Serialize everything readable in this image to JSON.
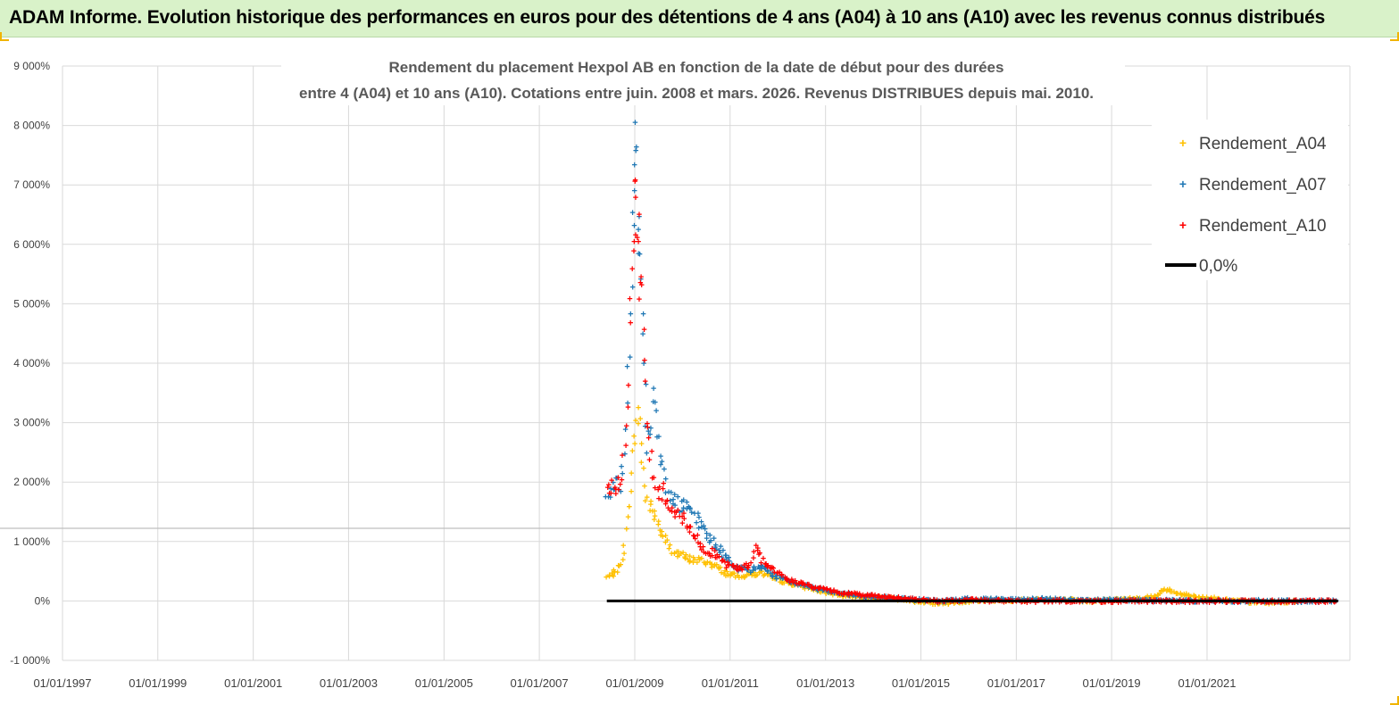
{
  "header": {
    "title": "ADAM Informe. Evolution historique des performances en euros pour des détentions de 4 ans (A04) à 10 ans (A10) avec les revenus connus distribués"
  },
  "colors": {
    "a04": "#ffc000",
    "a07": "#1f77b4",
    "a10": "#ff0000",
    "zero": "#000000",
    "grid": "#d9d9d9",
    "header_bg": "#d9f2c9"
  },
  "chart_data": {
    "type": "scatter",
    "title_line1": "Rendement du placement Hexpol AB en fonction de la date de début pour des durées",
    "title_line2": "entre 4 (A04) et 10 ans (A10).  Cotations entre juin. 2008 et mars. 2026. Revenus DISTRIBUES depuis mai. 2010.",
    "xlabel": "",
    "ylabel": "",
    "xlim": [
      "1997-01-01",
      "2023-12-31"
    ],
    "ylim": [
      -1000,
      9000
    ],
    "x_ticks": [
      "01/01/1997",
      "01/01/1999",
      "01/01/2001",
      "01/01/2003",
      "01/01/2005",
      "01/01/2007",
      "01/01/2009",
      "01/01/2011",
      "01/01/2013",
      "01/01/2015",
      "01/01/2017",
      "01/01/2019",
      "01/01/2021"
    ],
    "y_ticks": [
      {
        "value": -1000,
        "label": "-1 000%"
      },
      {
        "value": 0,
        "label": "0%"
      },
      {
        "value": 1000,
        "label": "1 000%"
      },
      {
        "value": 2000,
        "label": "2 000%"
      },
      {
        "value": 3000,
        "label": "3 000%"
      },
      {
        "value": 4000,
        "label": "4 000%"
      },
      {
        "value": 5000,
        "label": "5 000%"
      },
      {
        "value": 6000,
        "label": "6 000%"
      },
      {
        "value": 7000,
        "label": "7 000%"
      },
      {
        "value": 8000,
        "label": "8 000%"
      },
      {
        "value": 9000,
        "label": "9 000%"
      }
    ],
    "legend_position": "top-right",
    "series": [
      {
        "name": "Rendement_A04",
        "key": "a04",
        "points": [
          [
            "2008-06-01",
            400
          ],
          [
            "2008-08-01",
            480
          ],
          [
            "2008-09-15",
            600
          ],
          [
            "2008-10-15",
            1000
          ],
          [
            "2008-11-15",
            1500
          ],
          [
            "2008-12-10",
            2200
          ],
          [
            "2008-12-25",
            2600
          ],
          [
            "2009-01-10",
            3000
          ],
          [
            "2009-02-01",
            3200
          ],
          [
            "2009-02-20",
            2700
          ],
          [
            "2009-03-10",
            2200
          ],
          [
            "2009-04-01",
            1700
          ],
          [
            "2009-05-01",
            1600
          ],
          [
            "2009-06-15",
            1400
          ],
          [
            "2009-08-01",
            1100
          ],
          [
            "2009-10-01",
            900
          ],
          [
            "2009-12-01",
            780
          ],
          [
            "2010-03-01",
            700
          ],
          [
            "2010-06-01",
            680
          ],
          [
            "2010-09-01",
            600
          ],
          [
            "2010-12-01",
            470
          ],
          [
            "2011-03-01",
            420
          ],
          [
            "2011-06-01",
            450
          ],
          [
            "2011-09-01",
            470
          ],
          [
            "2011-12-01",
            380
          ],
          [
            "2012-04-01",
            300
          ],
          [
            "2012-09-01",
            220
          ],
          [
            "2013-01-01",
            140
          ],
          [
            "2013-06-01",
            90
          ],
          [
            "2014-01-01",
            60
          ],
          [
            "2014-06-01",
            40
          ],
          [
            "2015-01-01",
            -10
          ],
          [
            "2015-06-01",
            -40
          ],
          [
            "2016-01-01",
            0
          ],
          [
            "2016-06-01",
            20
          ],
          [
            "2017-01-01",
            10
          ],
          [
            "2017-06-01",
            30
          ],
          [
            "2018-01-01",
            20
          ],
          [
            "2018-06-01",
            0
          ],
          [
            "2019-01-01",
            20
          ],
          [
            "2019-06-01",
            40
          ],
          [
            "2019-12-01",
            80
          ],
          [
            "2020-02-01",
            200
          ],
          [
            "2020-06-01",
            120
          ],
          [
            "2020-12-01",
            60
          ],
          [
            "2021-06-01",
            20
          ],
          [
            "2021-12-01",
            -20
          ],
          [
            "2022-06-01",
            -20
          ],
          [
            "2022-12-01",
            0
          ]
        ]
      },
      {
        "name": "Rendement_A07",
        "key": "a07",
        "points": [
          [
            "2008-06-01",
            1700
          ],
          [
            "2008-07-15",
            1850
          ],
          [
            "2008-08-15",
            1900
          ],
          [
            "2008-09-15",
            2000
          ],
          [
            "2008-10-15",
            2500
          ],
          [
            "2008-11-01",
            3500
          ],
          [
            "2008-11-20",
            4500
          ],
          [
            "2008-12-10",
            5500
          ],
          [
            "2008-12-25",
            6500
          ],
          [
            "2009-01-05",
            7400
          ],
          [
            "2009-01-10",
            7700
          ],
          [
            "2009-01-25",
            6800
          ],
          [
            "2009-02-05",
            6000
          ],
          [
            "2009-02-20",
            5500
          ],
          [
            "2009-03-05",
            4500
          ],
          [
            "2009-03-20",
            3500
          ],
          [
            "2009-04-10",
            2700
          ],
          [
            "2009-05-01",
            3000
          ],
          [
            "2009-05-20",
            3400
          ],
          [
            "2009-06-05",
            3600
          ],
          [
            "2009-06-25",
            2800
          ],
          [
            "2009-07-20",
            2400
          ],
          [
            "2009-08-20",
            2000
          ],
          [
            "2009-10-01",
            1750
          ],
          [
            "2009-12-01",
            1650
          ],
          [
            "2010-03-01",
            1500
          ],
          [
            "2010-06-01",
            1250
          ],
          [
            "2010-09-01",
            950
          ],
          [
            "2010-12-01",
            750
          ],
          [
            "2011-03-01",
            550
          ],
          [
            "2011-06-01",
            500
          ],
          [
            "2011-09-01",
            600
          ],
          [
            "2011-12-01",
            420
          ],
          [
            "2012-04-01",
            330
          ],
          [
            "2012-09-01",
            240
          ],
          [
            "2013-01-01",
            180
          ],
          [
            "2013-06-01",
            120
          ],
          [
            "2014-01-01",
            70
          ],
          [
            "2014-06-01",
            50
          ],
          [
            "2015-01-01",
            20
          ],
          [
            "2015-06-01",
            0
          ],
          [
            "2016-01-01",
            30
          ],
          [
            "2016-06-01",
            40
          ],
          [
            "2017-01-01",
            20
          ],
          [
            "2017-06-01",
            30
          ],
          [
            "2018-01-01",
            30
          ],
          [
            "2018-06-01",
            10
          ],
          [
            "2019-01-01",
            20
          ],
          [
            "2019-06-01",
            20
          ],
          [
            "2020-01-01",
            10
          ],
          [
            "2020-06-01",
            10
          ],
          [
            "2021-01-01",
            0
          ],
          [
            "2021-06-01",
            0
          ],
          [
            "2022-01-01",
            0
          ],
          [
            "2022-06-01",
            0
          ],
          [
            "2023-01-01",
            0
          ],
          [
            "2023-06-01",
            0
          ],
          [
            "2023-10-01",
            0
          ]
        ]
      },
      {
        "name": "Rendement_A10",
        "key": "a10",
        "points": [
          [
            "2008-06-01",
            1800
          ],
          [
            "2008-07-15",
            1900
          ],
          [
            "2008-08-15",
            1950
          ],
          [
            "2008-09-15",
            2000
          ],
          [
            "2008-10-15",
            2600
          ],
          [
            "2008-11-01",
            3500
          ],
          [
            "2008-11-20",
            4300
          ],
          [
            "2008-12-10",
            5200
          ],
          [
            "2008-12-25",
            6000
          ],
          [
            "2009-01-05",
            6500
          ],
          [
            "2009-01-10",
            6800
          ],
          [
            "2009-01-25",
            6400
          ],
          [
            "2009-02-05",
            5800
          ],
          [
            "2009-02-20",
            5300
          ],
          [
            "2009-03-05",
            4600
          ],
          [
            "2009-03-20",
            3600
          ],
          [
            "2009-04-10",
            2800
          ],
          [
            "2009-05-01",
            2500
          ],
          [
            "2009-06-01",
            2000
          ],
          [
            "2009-07-01",
            1900
          ],
          [
            "2009-08-01",
            1850
          ],
          [
            "2009-10-01",
            1600
          ],
          [
            "2009-12-01",
            1500
          ],
          [
            "2010-03-01",
            1200
          ],
          [
            "2010-06-01",
            900
          ],
          [
            "2010-09-01",
            800
          ],
          [
            "2010-12-01",
            620
          ],
          [
            "2011-03-01",
            540
          ],
          [
            "2011-06-01",
            600
          ],
          [
            "2011-07-15",
            950
          ],
          [
            "2011-09-01",
            700
          ],
          [
            "2011-12-01",
            520
          ],
          [
            "2012-04-01",
            350
          ],
          [
            "2012-09-01",
            260
          ],
          [
            "2013-01-01",
            190
          ],
          [
            "2013-06-01",
            130
          ],
          [
            "2014-01-01",
            90
          ],
          [
            "2014-06-01",
            60
          ],
          [
            "2015-01-01",
            20
          ],
          [
            "2015-06-01",
            0
          ],
          [
            "2016-01-01",
            20
          ],
          [
            "2016-06-01",
            10
          ],
          [
            "2017-01-01",
            0
          ],
          [
            "2017-06-01",
            0
          ],
          [
            "2018-01-01",
            0
          ],
          [
            "2018-06-01",
            0
          ],
          [
            "2019-01-01",
            0
          ],
          [
            "2019-06-01",
            0
          ],
          [
            "2020-01-01",
            0
          ],
          [
            "2020-06-01",
            0
          ],
          [
            "2021-01-01",
            0
          ],
          [
            "2021-06-01",
            0
          ],
          [
            "2022-01-01",
            0
          ],
          [
            "2022-06-01",
            0
          ],
          [
            "2023-01-01",
            0
          ],
          [
            "2023-06-01",
            0
          ],
          [
            "2023-10-01",
            0
          ]
        ]
      }
    ],
    "reference_line": {
      "name": "0,0%",
      "value": 0,
      "x_start": "2008-06-01",
      "x_end": "2023-10-01"
    }
  }
}
